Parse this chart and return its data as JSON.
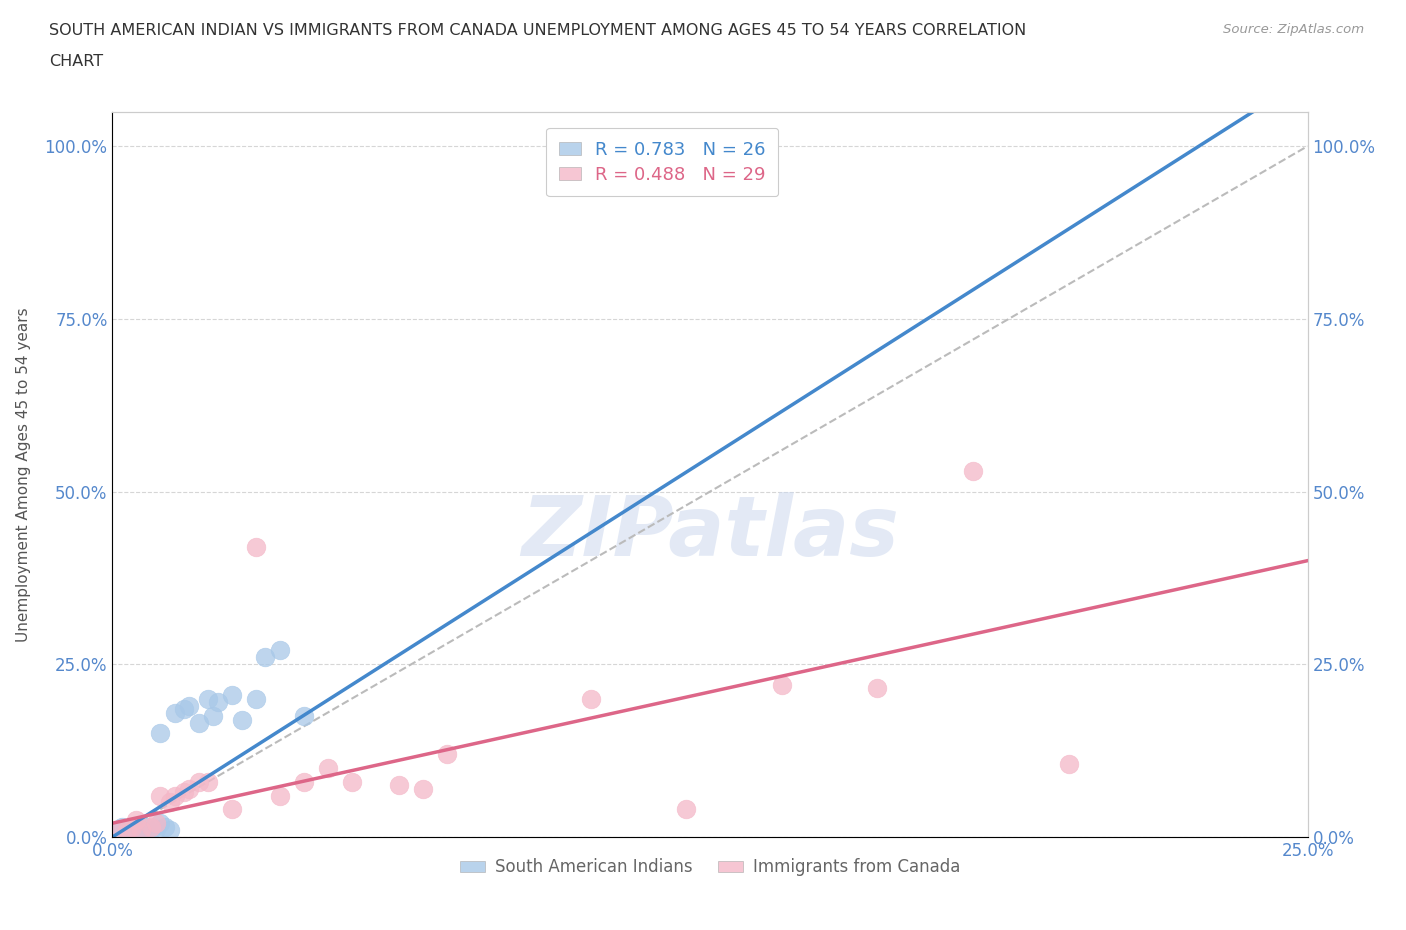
{
  "title_line1": "SOUTH AMERICAN INDIAN VS IMMIGRANTS FROM CANADA UNEMPLOYMENT AMONG AGES 45 TO 54 YEARS CORRELATION",
  "title_line2": "CHART",
  "source": "Source: ZipAtlas.com",
  "xlabel": "",
  "ylabel": "Unemployment Among Ages 45 to 54 years",
  "xmin": 0.0,
  "xmax": 0.25,
  "ymin": 0.0,
  "ymax": 1.05,
  "xticks": [
    0.0,
    0.05,
    0.1,
    0.15,
    0.2,
    0.25
  ],
  "yticks": [
    0.0,
    0.25,
    0.5,
    0.75,
    1.0
  ],
  "ytick_labels": [
    "0.0%",
    "25.0%",
    "50.0%",
    "75.0%",
    "100.0%"
  ],
  "xtick_labels": [
    "0.0%",
    "",
    "",
    "",
    "",
    "25.0%"
  ],
  "blue_color": "#a8c8e8",
  "pink_color": "#f4b8c8",
  "blue_line_color": "#4488cc",
  "pink_line_color": "#dd6688",
  "diagonal_color": "#bbbbbb",
  "R_blue": 0.783,
  "N_blue": 26,
  "R_pink": 0.488,
  "N_pink": 29,
  "blue_scatter_x": [
    0.001,
    0.002,
    0.003,
    0.004,
    0.005,
    0.006,
    0.007,
    0.008,
    0.009,
    0.01,
    0.01,
    0.011,
    0.012,
    0.013,
    0.015,
    0.016,
    0.018,
    0.02,
    0.021,
    0.022,
    0.025,
    0.027,
    0.03,
    0.032,
    0.035,
    0.04
  ],
  "blue_scatter_y": [
    0.01,
    0.015,
    0.008,
    0.012,
    0.01,
    0.008,
    0.015,
    0.01,
    0.012,
    0.02,
    0.15,
    0.015,
    0.01,
    0.18,
    0.185,
    0.19,
    0.165,
    0.2,
    0.175,
    0.195,
    0.205,
    0.17,
    0.2,
    0.26,
    0.27,
    0.175
  ],
  "pink_scatter_x": [
    0.001,
    0.003,
    0.004,
    0.005,
    0.006,
    0.008,
    0.009,
    0.01,
    0.012,
    0.013,
    0.015,
    0.016,
    0.018,
    0.02,
    0.025,
    0.03,
    0.035,
    0.04,
    0.045,
    0.05,
    0.06,
    0.065,
    0.07,
    0.1,
    0.12,
    0.14,
    0.16,
    0.18,
    0.2
  ],
  "pink_scatter_y": [
    0.008,
    0.01,
    0.015,
    0.025,
    0.01,
    0.015,
    0.02,
    0.06,
    0.05,
    0.06,
    0.065,
    0.07,
    0.08,
    0.08,
    0.04,
    0.42,
    0.06,
    0.08,
    0.1,
    0.08,
    0.075,
    0.07,
    0.12,
    0.2,
    0.04,
    0.22,
    0.215,
    0.53,
    0.105
  ],
  "blue_line_x": [
    0.0,
    0.25
  ],
  "blue_line_y": [
    0.0,
    1.1
  ],
  "pink_line_x": [
    0.0,
    0.25
  ],
  "pink_line_y": [
    0.02,
    0.4
  ],
  "watermark_text": "ZIPatlas",
  "background_color": "#ffffff",
  "grid_color": "#cccccc"
}
